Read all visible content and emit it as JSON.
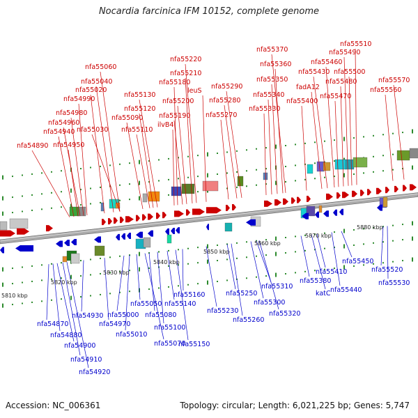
{
  "title": "Nocardia farcinica IFM 10152, complete genome",
  "accession": "Accession: NC_006361",
  "summary": "Topology: circular; Length: 6,021,225 bp; Genes: 5,747",
  "colors": {
    "forward": "#cc0000",
    "reverse": "#0000cc",
    "backbone": "#777777"
  },
  "scale_labels": [
    "5810 kbp",
    "5820 kbp",
    "5830 kbp",
    "5840 kbp",
    "5850 kbp",
    "5860 kbp",
    "5870 kbp",
    "5880 kbp"
  ],
  "forward_genes": [
    "nfa54890",
    "nfa54940",
    "nfa54950",
    "nfa54960",
    "nfa54980",
    "nfa54990",
    "nfa55020",
    "nfa55030",
    "nfa55040",
    "nfa55060",
    "nfa55090",
    "nfa55110",
    "nfa55120",
    "nfa55130",
    "ilvB4",
    "nfa55180",
    "nfa55190",
    "nfa55200",
    "nfa55210",
    "nfa55220",
    "leuS",
    "nfa55270",
    "nfa55280",
    "nfa55290",
    "nfa55330",
    "nfa55340",
    "nfa55350",
    "nfa55360",
    "nfa55370",
    "nfa55400",
    "fadA12",
    "nfa55430",
    "nfa55460",
    "nfa55470",
    "nfa55480",
    "nfa55490",
    "nfa55500",
    "nfa55510",
    "nfa55560",
    "nfa55570"
  ],
  "reverse_genes": [
    "nfa54870",
    "nfa54880",
    "nfa54900",
    "nfa54910",
    "nfa54920",
    "nfa54930",
    "nfa54970",
    "nfa55000",
    "nfa55010",
    "nfa55050",
    "nfa55070",
    "nfa55080",
    "nfa55100",
    "nfa55140",
    "nfa55150",
    "nfa55160",
    "nfa55230",
    "nfa55250",
    "nfa55260",
    "nfa55300",
    "nfa55310",
    "nfa55320",
    "nfa55380",
    "katC",
    "nfa55410",
    "nfa55440",
    "nfa55450",
    "nfa55520",
    "nfa55530"
  ]
}
